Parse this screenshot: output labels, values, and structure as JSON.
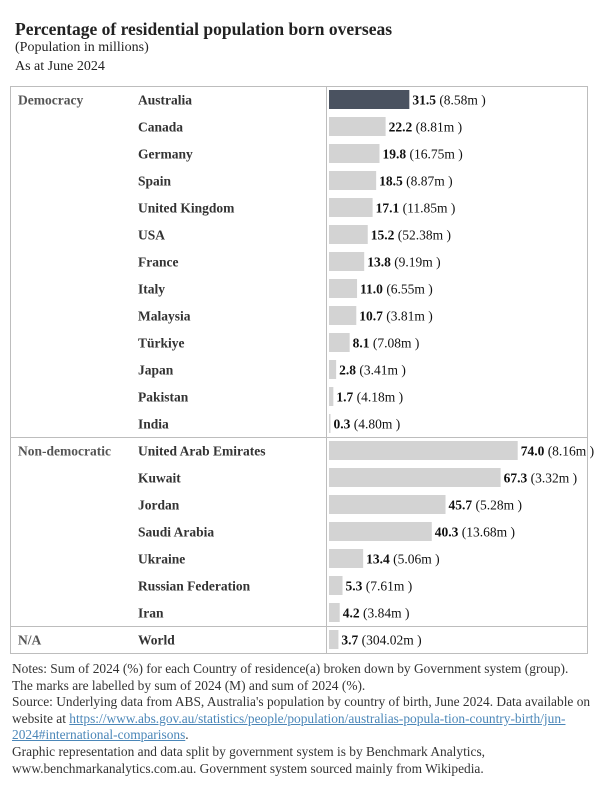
{
  "header": {
    "title": "Percentage of residential population born overseas",
    "subtitle": "(Population in millions)",
    "as_at": "As at June 2024"
  },
  "chart_data": {
    "type": "bar",
    "orientation": "horizontal",
    "xlim": [
      0,
      100
    ],
    "grid": false,
    "highlight_color": "#4a5260",
    "bar_color": "#d3d3d3",
    "groups": [
      {
        "name": "Democracy",
        "rows": [
          {
            "country": "Australia",
            "value": 31.5,
            "value_label": "31.5",
            "pop_label": "(8.58m )",
            "highlight": true
          },
          {
            "country": "Canada",
            "value": 22.2,
            "value_label": "22.2",
            "pop_label": "(8.81m )"
          },
          {
            "country": "Germany",
            "value": 19.8,
            "value_label": "19.8",
            "pop_label": "(16.75m )"
          },
          {
            "country": "Spain",
            "value": 18.5,
            "value_label": "18.5",
            "pop_label": "(8.87m )"
          },
          {
            "country": "United Kingdom",
            "value": 17.1,
            "value_label": "17.1",
            "pop_label": "(11.85m )"
          },
          {
            "country": "USA",
            "value": 15.2,
            "value_label": "15.2",
            "pop_label": "(52.38m )"
          },
          {
            "country": "France",
            "value": 13.8,
            "value_label": "13.8",
            "pop_label": "(9.19m )"
          },
          {
            "country": "Italy",
            "value": 11.0,
            "value_label": "11.0",
            "pop_label": "(6.55m )"
          },
          {
            "country": "Malaysia",
            "value": 10.7,
            "value_label": "10.7",
            "pop_label": "(3.81m )"
          },
          {
            "country": "Türkiye",
            "value": 8.1,
            "value_label": "8.1",
            "pop_label": "(7.08m )"
          },
          {
            "country": "Japan",
            "value": 2.8,
            "value_label": "2.8",
            "pop_label": "(3.41m )"
          },
          {
            "country": "Pakistan",
            "value": 1.7,
            "value_label": "1.7",
            "pop_label": "(4.18m )"
          },
          {
            "country": "India",
            "value": 0.3,
            "value_label": "0.3",
            "pop_label": "(4.80m )"
          }
        ]
      },
      {
        "name": "Non-democratic",
        "rows": [
          {
            "country": "United Arab Emirates",
            "value": 74.0,
            "value_label": "74.0",
            "pop_label": "(8.16m )"
          },
          {
            "country": "Kuwait",
            "value": 67.3,
            "value_label": "67.3",
            "pop_label": "(3.32m )"
          },
          {
            "country": "Jordan",
            "value": 45.7,
            "value_label": "45.7",
            "pop_label": "(5.28m )"
          },
          {
            "country": "Saudi Arabia",
            "value": 40.3,
            "value_label": "40.3",
            "pop_label": "(13.68m )"
          },
          {
            "country": "Ukraine",
            "value": 13.4,
            "value_label": "13.4",
            "pop_label": "(5.06m )"
          },
          {
            "country": "Russian Federation",
            "value": 5.3,
            "value_label": "5.3",
            "pop_label": "(7.61m )"
          },
          {
            "country": "Iran",
            "value": 4.2,
            "value_label": "4.2",
            "pop_label": "(3.84m )"
          }
        ]
      },
      {
        "name": "N/A",
        "rows": [
          {
            "country": "World",
            "value": 3.7,
            "value_label": "3.7",
            "pop_label": "(304.02m )"
          }
        ]
      }
    ]
  },
  "notes": {
    "line1": "Notes: Sum of 2024 (%) for each Country of residence(a) broken down by Government system (group).  The marks are labelled by sum of 2024 (M) and sum of 2024 (%).",
    "line2_prefix": "Source: Underlying data from ABS, Australia's population by country of birth, June 2024. Data available on website at ",
    "link": "https://www.abs.gov.au/statistics/people/population/australias-population-country-birth/jun-2024#international-comparisons",
    "link_display": "https://www.abs.gov.au/statistics/people/population/australias-popula-tion-country-birth/jun-2024#international-comparisons",
    "line2_suffix": ".",
    "line3": "Graphic representation and data split by government system is by Benchmark Analytics, www.benchmarkanalytics.com.au. Government system sourced mainly from Wikipedia."
  }
}
